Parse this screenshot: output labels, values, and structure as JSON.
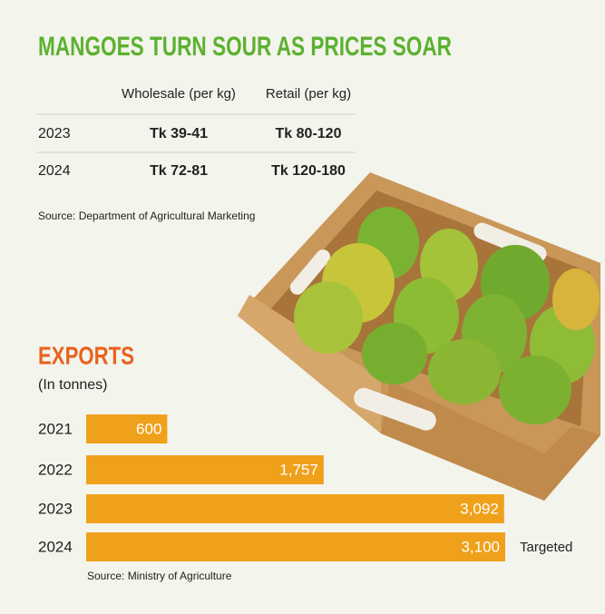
{
  "title": "MANGOES TURN SOUR AS PRICES SOAR",
  "price_table": {
    "headers": [
      "Wholesale (per kg)",
      "Retail (per kg)"
    ],
    "rows": [
      [
        "2023",
        "Tk 39-41",
        "Tk 80-120"
      ],
      [
        "2024",
        "Tk 72-81",
        "Tk 120-180"
      ]
    ]
  },
  "price_source": "Source: Department of Agricultural Marketing",
  "chart_data": {
    "type": "bar",
    "orientation": "horizontal",
    "title": "EXPORTS",
    "subtitle": "(In tonnes)",
    "categories": [
      "2021",
      "2022",
      "2023",
      "2024"
    ],
    "values": [
      600,
      1757,
      3092,
      3100
    ],
    "value_labels": [
      "600",
      "1,757",
      "3,092",
      "3,100"
    ],
    "color": "#efa11c",
    "annotation": {
      "text": "Targeted",
      "category": "2024"
    },
    "source": "Source: Ministry of Agriculture"
  }
}
